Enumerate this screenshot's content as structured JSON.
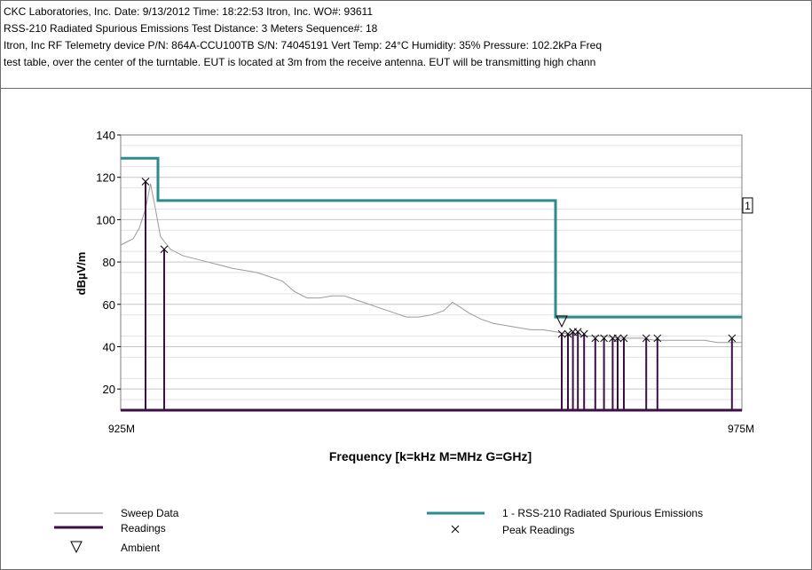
{
  "header": {
    "lines": [
      "CKC Laboratories, Inc.  Date:  9/13/2012  Time: 18:22:53  Itron, Inc. WO#: 93611",
      "RSS-210 Radiated Spurious Emissions Test Distance: 3 Meters  Sequence#: 18",
      "Itron, Inc RF Telemetry device P/N: 864A-CCU100TB S/N: 74045191 Vert Temp: 24°C Humidity: 35% Pressure: 102.2kPa Freq",
      "test table, over the center of the turntable. EUT is located at 3m from the receive antenna. EUT will be transmitting  high chann"
    ]
  },
  "chart_data": {
    "type": "line",
    "title": "",
    "xlabel": "Frequency [k=kHz M=MHz G=GHz]",
    "ylabel": "dBµV/m",
    "xlim": [
      925,
      975
    ],
    "ylim": [
      10,
      140
    ],
    "x_tick_labels": [
      "925M",
      "975M"
    ],
    "y_ticks": [
      20,
      40,
      60,
      80,
      100,
      120,
      140
    ],
    "grid": true,
    "limit_line": {
      "name": "1 - RSS-210 Radiated Spurious Emissions",
      "color": "#2e8b8b",
      "label": "1",
      "points": [
        [
          925,
          129
        ],
        [
          928,
          129
        ],
        [
          928,
          109
        ],
        [
          960,
          109
        ],
        [
          960,
          54
        ],
        [
          975,
          54
        ]
      ]
    },
    "sweep": {
      "name": "Sweep Data",
      "color": "#9a9a9a",
      "points": [
        [
          925,
          88
        ],
        [
          926,
          91
        ],
        [
          926.5,
          96
        ],
        [
          927,
          105
        ],
        [
          927.4,
          117
        ],
        [
          927.8,
          105
        ],
        [
          928.2,
          92
        ],
        [
          929,
          86
        ],
        [
          930,
          83
        ],
        [
          932,
          80
        ],
        [
          934,
          77
        ],
        [
          936,
          75
        ],
        [
          937,
          73
        ],
        [
          938,
          71
        ],
        [
          939,
          66
        ],
        [
          940,
          63
        ],
        [
          941,
          63
        ],
        [
          942,
          64
        ],
        [
          943,
          64
        ],
        [
          944,
          62
        ],
        [
          945,
          60
        ],
        [
          946,
          58
        ],
        [
          947,
          56
        ],
        [
          948,
          54
        ],
        [
          949,
          54
        ],
        [
          950,
          55
        ],
        [
          951,
          57
        ],
        [
          951.7,
          61
        ],
        [
          952.5,
          58
        ],
        [
          953,
          56
        ],
        [
          954,
          53
        ],
        [
          955,
          51
        ],
        [
          956,
          50
        ],
        [
          957,
          49
        ],
        [
          958,
          48
        ],
        [
          959,
          48
        ],
        [
          960,
          47
        ],
        [
          961,
          46
        ],
        [
          962,
          45
        ],
        [
          963,
          45
        ],
        [
          964,
          45
        ],
        [
          965,
          44
        ],
        [
          966,
          44
        ],
        [
          967,
          44
        ],
        [
          968,
          43
        ],
        [
          969,
          43
        ],
        [
          970,
          43
        ],
        [
          971,
          43
        ],
        [
          972,
          43
        ],
        [
          973,
          42
        ],
        [
          974,
          42
        ],
        [
          975,
          42
        ]
      ]
    },
    "readings": {
      "name": "Readings",
      "color": "#3d0f46",
      "points": [
        [
          927,
          118
        ],
        [
          928.5,
          86
        ],
        [
          960.5,
          46
        ],
        [
          961,
          46
        ],
        [
          961.4,
          47
        ],
        [
          961.8,
          47
        ],
        [
          962.3,
          46
        ],
        [
          963.2,
          44
        ],
        [
          963.9,
          44
        ],
        [
          964.6,
          44
        ],
        [
          965,
          44
        ],
        [
          965.5,
          44
        ],
        [
          967.3,
          44
        ],
        [
          968.2,
          44
        ],
        [
          974.2,
          44
        ]
      ]
    },
    "peak_readings": {
      "name": "Peak Readings",
      "marker": "x"
    },
    "ambient": {
      "name": "Ambient",
      "marker": "triangle-down",
      "points": [
        [
          960.5,
          52
        ]
      ]
    }
  },
  "legend": {
    "sweep_label": "Sweep Data",
    "readings_label": "Readings",
    "ambient_label": "Ambient",
    "limit_label": "1 - RSS-210 Radiated Spurious Emissions",
    "peak_label": "Peak Readings"
  }
}
